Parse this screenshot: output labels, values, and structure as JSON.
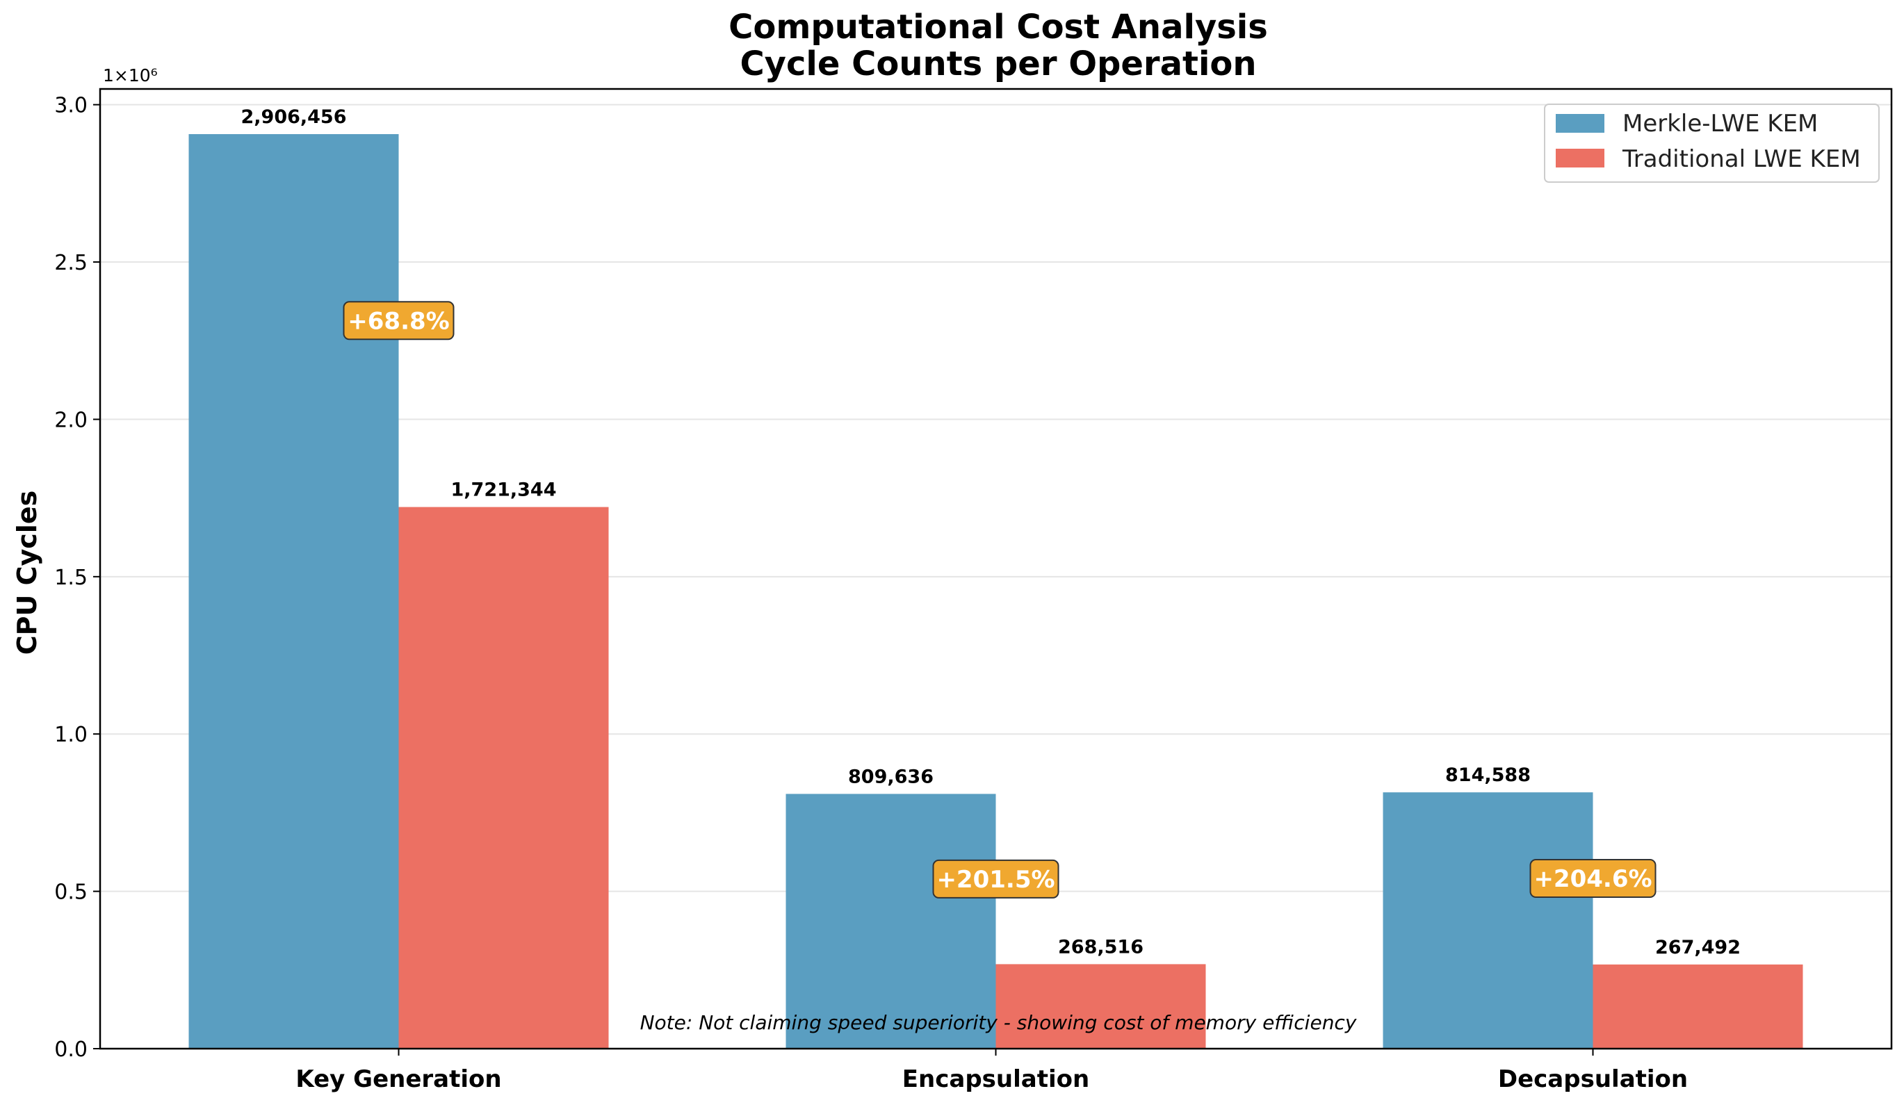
{
  "chart_data": {
    "type": "bar",
    "title": "Computational Cost Analysis",
    "subtitle": "Cycle Counts per Operation",
    "ylabel": "CPU Cycles",
    "xlabel": "",
    "y_multiplier": "1×10⁶",
    "ylim": [
      0,
      3.05
    ],
    "yticks": [
      "0.0",
      "0.5",
      "1.0",
      "1.5",
      "2.0",
      "2.5",
      "3.0"
    ],
    "ytick_values": [
      0,
      0.5,
      1.0,
      1.5,
      2.0,
      2.5,
      3.0
    ],
    "grid": "horizontal",
    "legend_position": "top-right",
    "categories": [
      "Key Generation",
      "Encapsulation",
      "Decapsulation"
    ],
    "series": [
      {
        "name": "Merkle-LWE KEM",
        "color": "#5a9ec1",
        "values": [
          2906456,
          809636,
          814588
        ],
        "labels": [
          "2,906,456",
          "809,636",
          "814,588"
        ]
      },
      {
        "name": "Traditional LWE KEM",
        "color": "#ec7063",
        "values": [
          1721344,
          268516,
          267492
        ],
        "labels": [
          "1,721,344",
          "268,516",
          "267,492"
        ]
      }
    ],
    "annotations": {
      "percent_increase": [
        "+68.8%",
        "+201.5%",
        "+204.6%"
      ],
      "percent_box_color": "#f0a830",
      "note": "Note: Not claiming speed superiority - showing cost of memory efficiency"
    }
  }
}
